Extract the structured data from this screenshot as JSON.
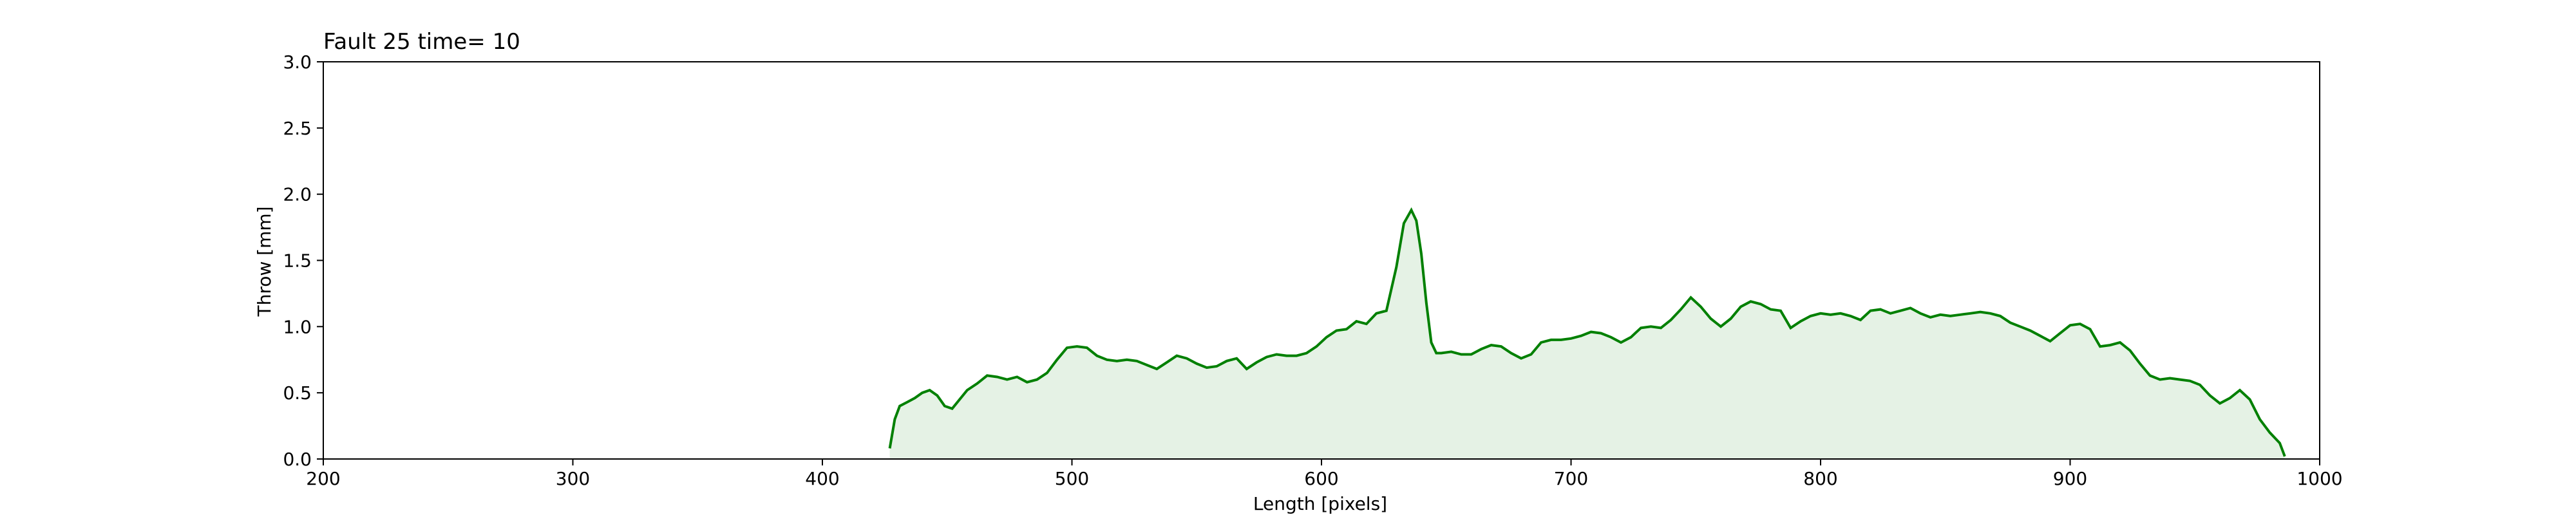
{
  "chart_data": {
    "type": "area",
    "title": "Fault 25 time= 10",
    "xlabel": "Length [pixels]",
    "ylabel": "Throw [mm]",
    "xlim": [
      200,
      1000
    ],
    "ylim": [
      0,
      3.0
    ],
    "xticks": [
      "200",
      "300",
      "400",
      "500",
      "600",
      "700",
      "800",
      "900",
      "1000"
    ],
    "yticks": [
      "0.0",
      "0.5",
      "1.0",
      "1.5",
      "2.0",
      "2.5",
      "3.0"
    ],
    "grid": false,
    "colors": {
      "line": "#008000",
      "fill": "#e5f2e5"
    },
    "series": [
      {
        "x": [
          427,
          429,
          431,
          434,
          437,
          440,
          443,
          446,
          449,
          452,
          455,
          458,
          462,
          466,
          470,
          474,
          478,
          482,
          486,
          490,
          494,
          498,
          502,
          506,
          510,
          514,
          518,
          522,
          526,
          530,
          534,
          538,
          542,
          546,
          550,
          554,
          558,
          562,
          566,
          570,
          574,
          578,
          582,
          586,
          590,
          594,
          598,
          602,
          606,
          610,
          614,
          618,
          622,
          626,
          630,
          633,
          636,
          638,
          640,
          642,
          644,
          646,
          648,
          652,
          656,
          660,
          664,
          668,
          672,
          676,
          680,
          684,
          688,
          692,
          696,
          700,
          704,
          708,
          712,
          716,
          720,
          724,
          728,
          732,
          736,
          740,
          744,
          748,
          752,
          756,
          760,
          764,
          768,
          772,
          776,
          780,
          784,
          788,
          792,
          796,
          800,
          804,
          808,
          812,
          816,
          820,
          824,
          828,
          832,
          836,
          840,
          844,
          848,
          852,
          856,
          860,
          864,
          868,
          872,
          876,
          880,
          884,
          888,
          892,
          896,
          900,
          904,
          908,
          912,
          916,
          920,
          924,
          928,
          932,
          936,
          940,
          944,
          948,
          952,
          956,
          960,
          964,
          968,
          972,
          976,
          980,
          984,
          986
        ],
        "y": [
          0.08,
          0.3,
          0.4,
          0.43,
          0.46,
          0.5,
          0.52,
          0.48,
          0.4,
          0.38,
          0.45,
          0.52,
          0.57,
          0.63,
          0.62,
          0.6,
          0.62,
          0.58,
          0.6,
          0.65,
          0.75,
          0.84,
          0.85,
          0.84,
          0.78,
          0.75,
          0.74,
          0.75,
          0.74,
          0.71,
          0.68,
          0.73,
          0.78,
          0.76,
          0.72,
          0.69,
          0.7,
          0.74,
          0.76,
          0.68,
          0.73,
          0.77,
          0.79,
          0.78,
          0.78,
          0.8,
          0.85,
          0.92,
          0.97,
          0.98,
          1.04,
          1.02,
          1.1,
          1.12,
          1.45,
          1.78,
          1.88,
          1.8,
          1.55,
          1.18,
          0.88,
          0.8,
          0.8,
          0.81,
          0.79,
          0.79,
          0.83,
          0.86,
          0.85,
          0.8,
          0.76,
          0.79,
          0.88,
          0.9,
          0.9,
          0.91,
          0.93,
          0.96,
          0.95,
          0.92,
          0.88,
          0.92,
          0.99,
          1.0,
          0.99,
          1.05,
          1.13,
          1.22,
          1.15,
          1.06,
          1.0,
          1.06,
          1.15,
          1.19,
          1.17,
          1.13,
          1.12,
          0.99,
          1.04,
          1.08,
          1.1,
          1.09,
          1.1,
          1.08,
          1.05,
          1.12,
          1.13,
          1.1,
          1.12,
          1.14,
          1.1,
          1.07,
          1.09,
          1.08,
          1.09,
          1.1,
          1.11,
          1.1,
          1.08,
          1.03,
          1.0,
          0.97,
          0.93,
          0.89,
          0.95,
          1.01,
          1.02,
          0.98,
          0.85,
          0.86,
          0.88,
          0.82,
          0.72,
          0.63,
          0.6,
          0.61,
          0.6,
          0.59,
          0.56,
          0.48,
          0.42,
          0.46,
          0.52,
          0.45,
          0.3,
          0.2,
          0.12,
          0.02
        ]
      }
    ]
  }
}
